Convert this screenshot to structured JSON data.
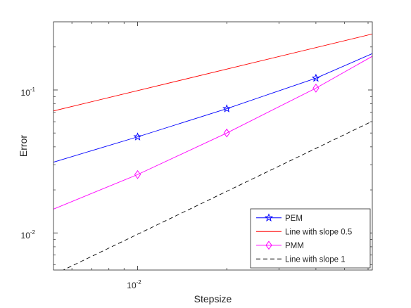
{
  "chart_data": {
    "type": "line",
    "xlabel": "Stepsize",
    "ylabel": "Error",
    "x_scale": "log",
    "y_scale": "log",
    "xlim": [
      0.0052,
      0.062
    ],
    "ylim": [
      0.0055,
      0.3
    ],
    "x_ticks": [
      {
        "base": "10",
        "exp": "-2",
        "value": 0.01
      }
    ],
    "y_ticks": [
      {
        "base": "10",
        "exp": "-1",
        "value": 0.1
      },
      {
        "base": "10",
        "exp": "-2",
        "value": 0.01
      }
    ],
    "grid": false,
    "legend_position": "bottom-right",
    "series": [
      {
        "name": "PEM",
        "color": "#0000ff",
        "line": "solid",
        "marker": "star",
        "x": [
          0.005,
          0.01,
          0.02,
          0.04,
          0.08
        ],
        "y": [
          0.0305,
          0.047,
          0.074,
          0.121,
          0.226
        ]
      },
      {
        "name": "Line with slope 0.5",
        "color": "#ff0000",
        "line": "solid",
        "marker": "none",
        "x": [
          0.005,
          0.08
        ],
        "y": [
          0.07,
          0.28
        ]
      },
      {
        "name": "PMM",
        "color": "#ff00ff",
        "line": "solid",
        "marker": "diamond",
        "x": [
          0.005,
          0.01,
          0.02,
          0.04,
          0.08
        ],
        "y": [
          0.0142,
          0.0256,
          0.05,
          0.103,
          0.232
        ]
      },
      {
        "name": "Line with slope 1",
        "color": "#000000",
        "line": "dashed",
        "marker": "none",
        "x": [
          0.005,
          0.08
        ],
        "y": [
          0.0049,
          0.078
        ]
      }
    ]
  }
}
